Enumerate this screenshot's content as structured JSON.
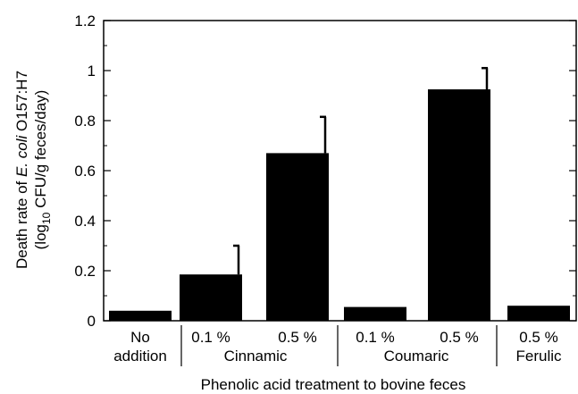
{
  "chart_data": {
    "type": "bar",
    "title": "",
    "xlabel": "Phenolic acid treatment to bovine feces",
    "ylabel": {
      "line1_prefix": "Death rate of ",
      "line1_italic": "E. coli",
      "line1_suffix": " O157:H7",
      "line2_prefix": "(log",
      "line2_sub": "10",
      "line2_suffix": " CFU/g feces/day)"
    },
    "ylim": [
      0,
      1.2
    ],
    "yticks": [
      "0",
      "0.2",
      "0.4",
      "0.6",
      "0.8",
      "1",
      "1.2"
    ],
    "categories": [
      "No addition",
      "0.1 % Cinnamic",
      "0.5 % Cinnamic",
      "0.1 % Coumaric",
      "0.5 % Coumaric",
      "0.5 % Ferulic"
    ],
    "values": [
      0.04,
      0.185,
      0.67,
      0.055,
      0.925,
      0.06
    ],
    "errors": [
      0.0,
      0.115,
      0.145,
      0.0,
      0.085,
      0.0
    ],
    "bar_color": "#000000",
    "grid": false,
    "groups": [
      {
        "lines": [
          "No",
          "addition"
        ]
      },
      {
        "lines": [
          "0.1 %",
          "0.5 %"
        ],
        "name": "Cinnamic"
      },
      {
        "lines": [
          "0.1 %",
          "0.5 %"
        ],
        "name": "Coumaric"
      },
      {
        "lines": [
          "0.5 %"
        ],
        "name": "Ferulic"
      }
    ]
  }
}
